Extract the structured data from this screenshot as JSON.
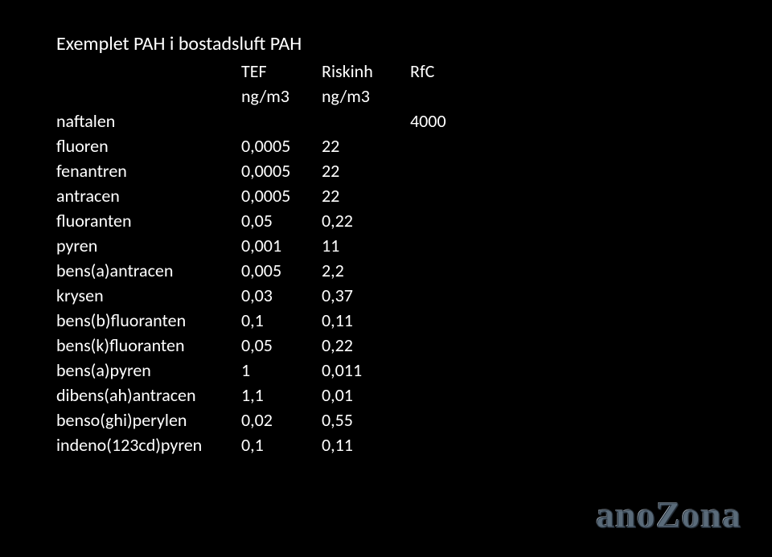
{
  "title": "Exemplet PAH i bostadsluft PAH",
  "headers": {
    "name": "",
    "tef": "TEF",
    "risk": "Riskinh",
    "rfc": "RfC"
  },
  "subheaders": {
    "name": "",
    "tef": "ng/m3",
    "risk": "ng/m3",
    "rfc": ""
  },
  "rows": [
    {
      "name": "naftalen",
      "tef": "",
      "risk": "",
      "rfc": "4000"
    },
    {
      "name": "fluoren",
      "tef": "0,0005",
      "risk": "22",
      "rfc": ""
    },
    {
      "name": "fenantren",
      "tef": "0,0005",
      "risk": "22",
      "rfc": ""
    },
    {
      "name": "antracen",
      "tef": "0,0005",
      "risk": "22",
      "rfc": ""
    },
    {
      "name": "fluoranten",
      "tef": "0,05",
      "risk": "0,22",
      "rfc": ""
    },
    {
      "name": "pyren",
      "tef": "0,001",
      "risk": "11",
      "rfc": ""
    },
    {
      "name": "bens(a)antracen",
      "tef": "0,005",
      "risk": "2,2",
      "rfc": ""
    },
    {
      "name": "krysen",
      "tef": "0,03",
      "risk": "0,37",
      "rfc": ""
    },
    {
      "name": "bens(b)fluoranten",
      "tef": "0,1",
      "risk": "0,11",
      "rfc": ""
    },
    {
      "name": "bens(k)fluoranten",
      "tef": "0,05",
      "risk": "0,22",
      "rfc": ""
    },
    {
      "name": "bens(a)pyren",
      "tef": "1",
      "risk": "0,011",
      "rfc": ""
    },
    {
      "name": "dibens(ah)antracen",
      "tef": "1,1",
      "risk": "0,01",
      "rfc": ""
    },
    {
      "name": "benso(ghi)perylen",
      "tef": "0,02",
      "risk": "0,55",
      "rfc": ""
    },
    {
      "name": "indeno(123cd)pyren",
      "tef": "0,1",
      "risk": "0,11",
      "rfc": ""
    }
  ],
  "logo": "anoZona"
}
